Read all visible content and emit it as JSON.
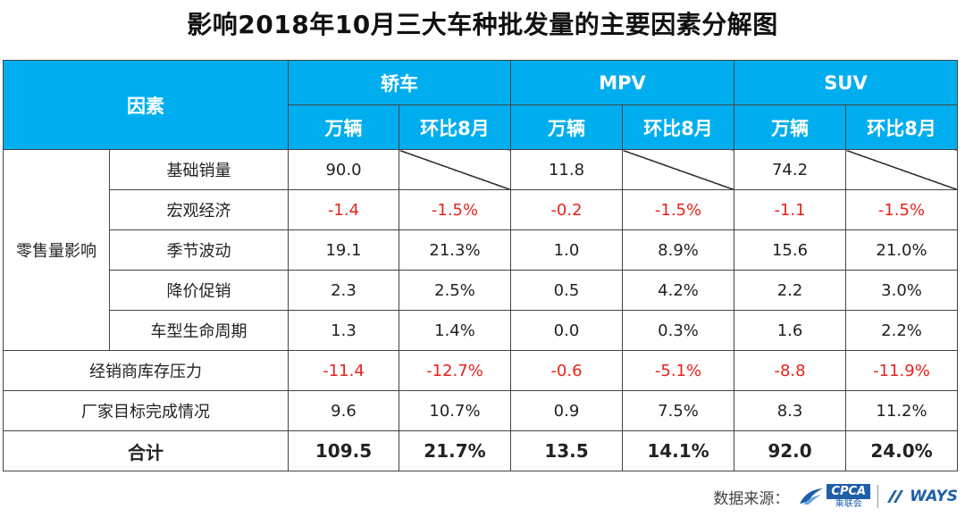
{
  "title": "影响2018年10月三大车种批发量的主要因素分解图",
  "header": {
    "factor": "因素",
    "groups": [
      "轿车",
      "MPV",
      "SUV"
    ],
    "sub_units": "万辆",
    "sub_mom": "环比8月"
  },
  "retail_group": "零售量影响",
  "rows": [
    {
      "label": "基础销量",
      "values": [
        "90.0",
        "",
        "11.8",
        "",
        "74.2",
        ""
      ]
    },
    {
      "label": "宏观经济",
      "values": [
        "-1.4",
        "-1.5%",
        "-0.2",
        "-1.5%",
        "-1.1",
        "-1.5%"
      ]
    },
    {
      "label": "季节波动",
      "values": [
        "19.1",
        "21.3%",
        "1.0",
        "8.9%",
        "15.6",
        "21.0%"
      ]
    },
    {
      "label": "降价促销",
      "values": [
        "2.3",
        "2.5%",
        "0.5",
        "4.2%",
        "2.2",
        "3.0%"
      ]
    },
    {
      "label": "车型生命周期",
      "values": [
        "1.3",
        "1.4%",
        "0.0",
        "0.3%",
        "1.6",
        "2.2%"
      ]
    },
    {
      "label": "经销商库存压力",
      "values": [
        "-11.4",
        "-12.7%",
        "-0.6",
        "-5.1%",
        "-8.8",
        "-11.9%"
      ]
    },
    {
      "label": "厂家目标完成情况",
      "values": [
        "9.6",
        "10.7%",
        "0.9",
        "7.5%",
        "8.3",
        "11.2%"
      ]
    }
  ],
  "total": {
    "label": "合计",
    "values": [
      "109.5",
      "21.7%",
      "13.5",
      "14.1%",
      "92.0",
      "24.0%"
    ]
  },
  "source": {
    "label": "数据来源：",
    "cpca": "CPCA",
    "cpca_cn": "乘联会",
    "ways": "WAYS"
  },
  "colors": {
    "header_bg": "#00aeef",
    "negative": "#e8221b",
    "brand": "#1f5fa8"
  }
}
